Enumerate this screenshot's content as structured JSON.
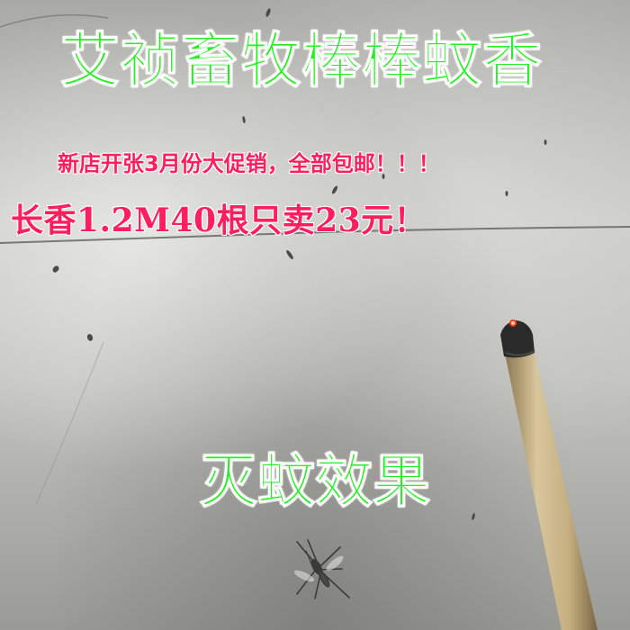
{
  "poster": {
    "headline": "艾祯畜牧棒棒蚊香",
    "promo": "新店开张3月份大促销，全部包邮！！！",
    "price": "长香1.2M40根只卖23元！",
    "effect": "灭蚊效果"
  },
  "colors": {
    "headline": "#22f01e",
    "effect": "#22f01e",
    "promo": "#ff1f5e",
    "price": "#ff1f5e",
    "text_outline": "#ffffff",
    "stick": "#c9b48a",
    "ash": "#2a2a2a",
    "ember": "#ff3b1a"
  },
  "icons": {
    "incense": "incense-stick-icon",
    "mosquito": "mosquito-icon"
  }
}
